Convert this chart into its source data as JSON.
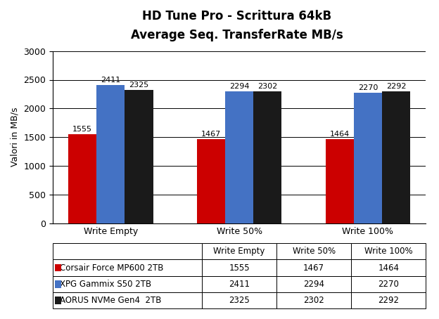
{
  "title_line1": "HD Tune Pro - Scrittura 64kB",
  "title_line2": "Average Seq. TransferRate MB/s",
  "categories": [
    "Write Empty",
    "Write 50%",
    "Write 100%"
  ],
  "series": [
    {
      "label": "Corsair Force MP600 2TB",
      "color": "#cc0000",
      "values": [
        1555,
        1467,
        1464
      ]
    },
    {
      "label": "XPG Gammix S50 2TB",
      "color": "#4472c4",
      "values": [
        2411,
        2294,
        2270
      ]
    },
    {
      "label": "AORUS NVMe Gen4  2TB",
      "color": "#1a1a1a",
      "values": [
        2325,
        2302,
        2292
      ]
    }
  ],
  "ylabel": "Valori in MB/s",
  "ylim": [
    0,
    3000
  ],
  "yticks": [
    0,
    500,
    1000,
    1500,
    2000,
    2500,
    3000
  ],
  "bar_width": 0.22,
  "background_color": "#ffffff",
  "title_fontsize": 12,
  "label_fontsize": 8,
  "tick_fontsize": 9,
  "table_col_labels": [
    "",
    "Write Empty",
    "Write 50%",
    "Write 100%"
  ],
  "legend_values": [
    [
      1555,
      1467,
      1464
    ],
    [
      2411,
      2294,
      2270
    ],
    [
      2325,
      2302,
      2292
    ]
  ]
}
